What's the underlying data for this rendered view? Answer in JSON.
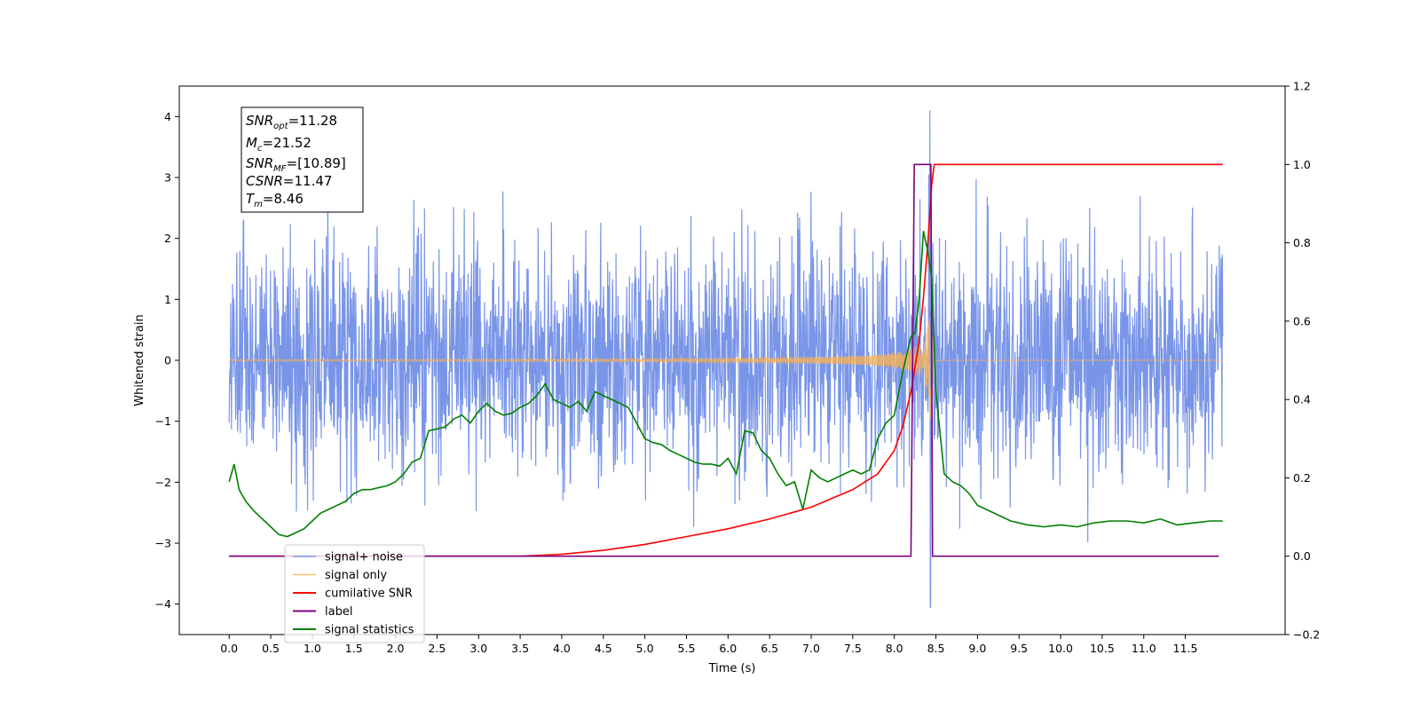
{
  "chart_data": {
    "type": "line",
    "xlabel": "Time (s)",
    "ylabel": "Whitened strain",
    "xlim": [
      -0.6,
      12.7
    ],
    "ylim": [
      -4.5,
      4.5
    ],
    "y2lim": [
      -0.2,
      1.2
    ],
    "x_ticks": [
      0.0,
      0.5,
      1.0,
      1.5,
      2.0,
      2.5,
      3.0,
      3.5,
      4.0,
      4.5,
      5.0,
      5.5,
      6.0,
      6.5,
      7.0,
      7.5,
      8.0,
      8.5,
      9.0,
      9.5,
      10.0,
      10.5,
      11.0,
      11.5
    ],
    "x_tick_labels": [
      "0.0",
      "0.5",
      "1.0",
      "1.5",
      "2.0",
      "2.5",
      "3.0",
      "3.5",
      "4.0",
      "4.5",
      "5.0",
      "5.5",
      "6.0",
      "6.5",
      "7.0",
      "7.5",
      "8.0",
      "8.5",
      "9.0",
      "9.5",
      "10.0",
      "10.5",
      "11.0",
      "11.5"
    ],
    "y_ticks": [
      4,
      3,
      2,
      1,
      0,
      -1,
      -2,
      -3,
      -4
    ],
    "y_tick_labels": [
      "4",
      "3",
      "2",
      "1",
      "0",
      "−1",
      "−2",
      "−3",
      "−4"
    ],
    "y2_ticks": [
      1.2,
      1.0,
      0.8,
      0.6,
      0.4,
      0.2,
      0.0,
      -0.2
    ],
    "y2_tick_labels": [
      "1.2",
      "1.0",
      "0.8",
      "0.6",
      "0.4",
      "0.2",
      "0.0",
      "−0.2"
    ],
    "legend_position": "lower-left",
    "annotation": {
      "lines": [
        {
          "base": "SNR",
          "sub": "opt",
          "rest": "=11.28"
        },
        {
          "base": "M",
          "sub": "c",
          "rest": "=21.52"
        },
        {
          "base": "SNR",
          "sub": "MF",
          "rest": "=[10.89]"
        },
        {
          "base": "CSNR",
          "sub": "",
          "rest": "=11.47"
        },
        {
          "base": "T",
          "sub": "m",
          "rest": "=8.46"
        }
      ]
    },
    "noise": {
      "t_start": 0.0,
      "t_end": 11.95,
      "std": 0.95,
      "max": 4.1,
      "min": -4.05,
      "peak_max_time": 8.43,
      "peak_min_time": 8.43
    },
    "chirp": {
      "t_start": 0.0,
      "t_merge": 8.46,
      "t_end": 11.95,
      "peak_amplitude": 1.3
    },
    "series": [
      {
        "name": "signal+ noise",
        "color": "#6a8ae6",
        "axis": "left"
      },
      {
        "name": "signal only",
        "color": "#ffb34d",
        "axis": "left"
      },
      {
        "name": "cumilative SNR",
        "color": "#ff0000",
        "axis": "right",
        "x": [
          0.0,
          3.5,
          4.0,
          4.5,
          5.0,
          5.5,
          6.0,
          6.5,
          7.0,
          7.5,
          7.8,
          8.0,
          8.1,
          8.2,
          8.3,
          8.35,
          8.4,
          8.45,
          8.48,
          9.0,
          10.0,
          11.0,
          11.95
        ],
        "y": [
          0.0,
          0.0,
          0.005,
          0.015,
          0.03,
          0.05,
          0.07,
          0.095,
          0.125,
          0.17,
          0.21,
          0.27,
          0.33,
          0.42,
          0.55,
          0.66,
          0.79,
          0.95,
          1.0,
          1.0,
          1.0,
          1.0,
          1.0
        ]
      },
      {
        "name": "label",
        "color": "#800080",
        "axis": "right",
        "x": [
          0.0,
          8.2,
          8.24,
          8.44,
          8.46,
          11.9
        ],
        "y": [
          0.0,
          0.0,
          1.0,
          1.0,
          0.0,
          0.0
        ]
      },
      {
        "name": "signal statistics",
        "color": "#008000",
        "axis": "right",
        "x": [
          0.0,
          0.06,
          0.12,
          0.2,
          0.3,
          0.4,
          0.5,
          0.6,
          0.7,
          0.8,
          0.9,
          1.0,
          1.1,
          1.2,
          1.3,
          1.4,
          1.5,
          1.6,
          1.7,
          1.8,
          1.9,
          2.0,
          2.1,
          2.2,
          2.3,
          2.4,
          2.5,
          2.6,
          2.7,
          2.8,
          2.9,
          3.0,
          3.1,
          3.2,
          3.3,
          3.4,
          3.5,
          3.6,
          3.7,
          3.8,
          3.9,
          4.0,
          4.1,
          4.2,
          4.3,
          4.4,
          4.5,
          4.6,
          4.7,
          4.8,
          4.9,
          5.0,
          5.1,
          5.2,
          5.3,
          5.4,
          5.5,
          5.6,
          5.7,
          5.8,
          5.9,
          6.0,
          6.1,
          6.2,
          6.3,
          6.4,
          6.5,
          6.6,
          6.7,
          6.8,
          6.9,
          7.0,
          7.1,
          7.2,
          7.3,
          7.4,
          7.5,
          7.6,
          7.7,
          7.8,
          7.9,
          8.0,
          8.1,
          8.2,
          8.25,
          8.3,
          8.35,
          8.4,
          8.45,
          8.5,
          8.6,
          8.7,
          8.8,
          8.9,
          9.0,
          9.2,
          9.4,
          9.6,
          9.8,
          10.0,
          10.2,
          10.4,
          10.6,
          10.8,
          11.0,
          11.2,
          11.4,
          11.6,
          11.8,
          11.95
        ],
        "y": [
          0.19,
          0.235,
          0.17,
          0.14,
          0.115,
          0.095,
          0.075,
          0.055,
          0.05,
          0.06,
          0.07,
          0.09,
          0.11,
          0.12,
          0.13,
          0.14,
          0.16,
          0.17,
          0.17,
          0.175,
          0.18,
          0.19,
          0.21,
          0.24,
          0.25,
          0.32,
          0.325,
          0.33,
          0.35,
          0.36,
          0.34,
          0.37,
          0.39,
          0.37,
          0.36,
          0.365,
          0.38,
          0.39,
          0.41,
          0.44,
          0.4,
          0.39,
          0.38,
          0.395,
          0.37,
          0.42,
          0.41,
          0.4,
          0.39,
          0.38,
          0.34,
          0.3,
          0.29,
          0.285,
          0.27,
          0.26,
          0.25,
          0.24,
          0.235,
          0.235,
          0.23,
          0.25,
          0.21,
          0.32,
          0.315,
          0.27,
          0.25,
          0.21,
          0.18,
          0.19,
          0.12,
          0.22,
          0.2,
          0.19,
          0.2,
          0.21,
          0.22,
          0.21,
          0.22,
          0.3,
          0.34,
          0.36,
          0.47,
          0.56,
          0.57,
          0.66,
          0.83,
          0.78,
          0.71,
          0.42,
          0.21,
          0.19,
          0.18,
          0.16,
          0.13,
          0.11,
          0.09,
          0.08,
          0.075,
          0.08,
          0.075,
          0.085,
          0.09,
          0.09,
          0.085,
          0.095,
          0.08,
          0.085,
          0.09,
          0.09
        ]
      }
    ]
  }
}
